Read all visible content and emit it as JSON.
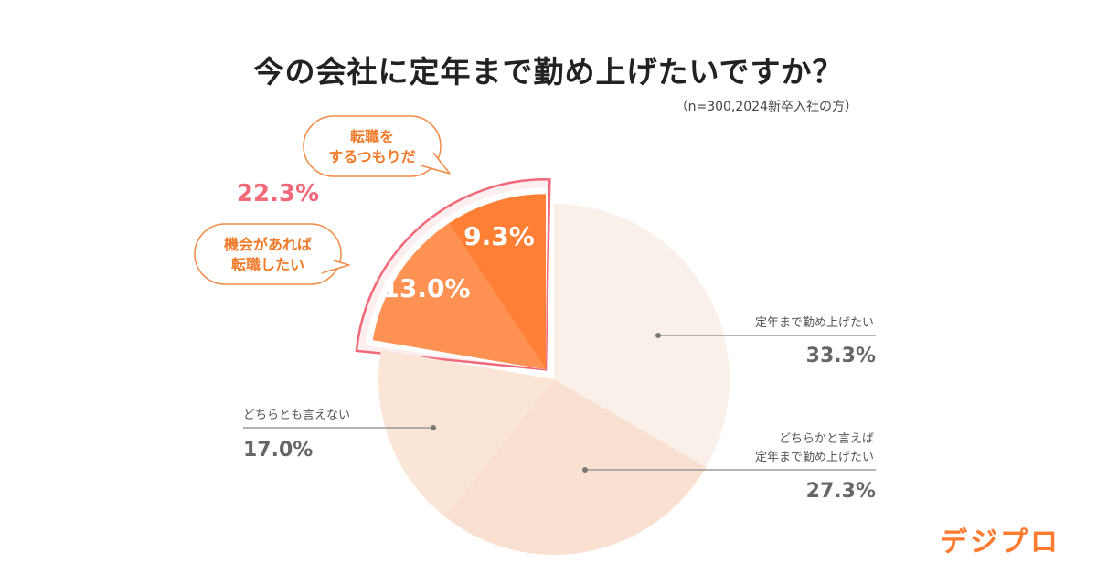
{
  "title": "今の会社に定年まで勤め上げたいですか？",
  "note": "（n=300,2024新卒入社の方）",
  "logo": "デジプロ",
  "chart_data": {
    "type": "pie",
    "title": "今の会社に定年まで勤め上げたいですか？",
    "slices": [
      {
        "label": "定年まで勤め上げたい",
        "value": 33.3,
        "value_label": "33.3%",
        "color": "#faf0ea",
        "exploded": false
      },
      {
        "label": "どちらかと言えば\n定年まで勤め上げたい",
        "value": 27.3,
        "value_label": "27.3%",
        "color": "#fae0d0",
        "exploded": false
      },
      {
        "label": "どちらとも言えない",
        "value": 17.0,
        "value_label": "17.0%",
        "color": "#fae5d7",
        "exploded": false
      },
      {
        "label": "機会があれば\n転職したい",
        "value": 13.0,
        "value_label": "13.0%",
        "color": "#ff9253",
        "exploded": true
      },
      {
        "label": "転職を\nするつもりだ",
        "value": 9.3,
        "value_label": "9.3%",
        "color": "#ff7f35",
        "exploded": true
      }
    ],
    "group": {
      "value": 22.3,
      "value_label": "22.3%",
      "color": "#f16979"
    }
  }
}
